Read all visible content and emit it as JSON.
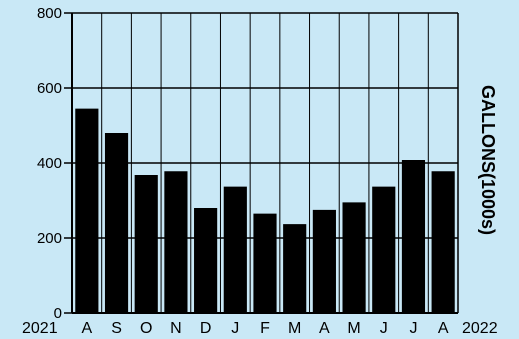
{
  "chart_data": {
    "type": "bar",
    "categories": [
      "A",
      "S",
      "O",
      "N",
      "D",
      "J",
      "F",
      "M",
      "A",
      "M",
      "J",
      "J",
      "A"
    ],
    "values": [
      545,
      480,
      368,
      378,
      280,
      337,
      265,
      237,
      275,
      295,
      337,
      408,
      378
    ],
    "ylabel": "GALLONS(1000s)",
    "xlabel": "",
    "ylim": [
      0,
      800
    ],
    "yticks": [
      0,
      200,
      400,
      600,
      800
    ],
    "x_start_label": "2021",
    "x_end_label": "2022",
    "grid": true,
    "colors": {
      "background": "#c9e8f6",
      "bar": "#000000"
    }
  }
}
